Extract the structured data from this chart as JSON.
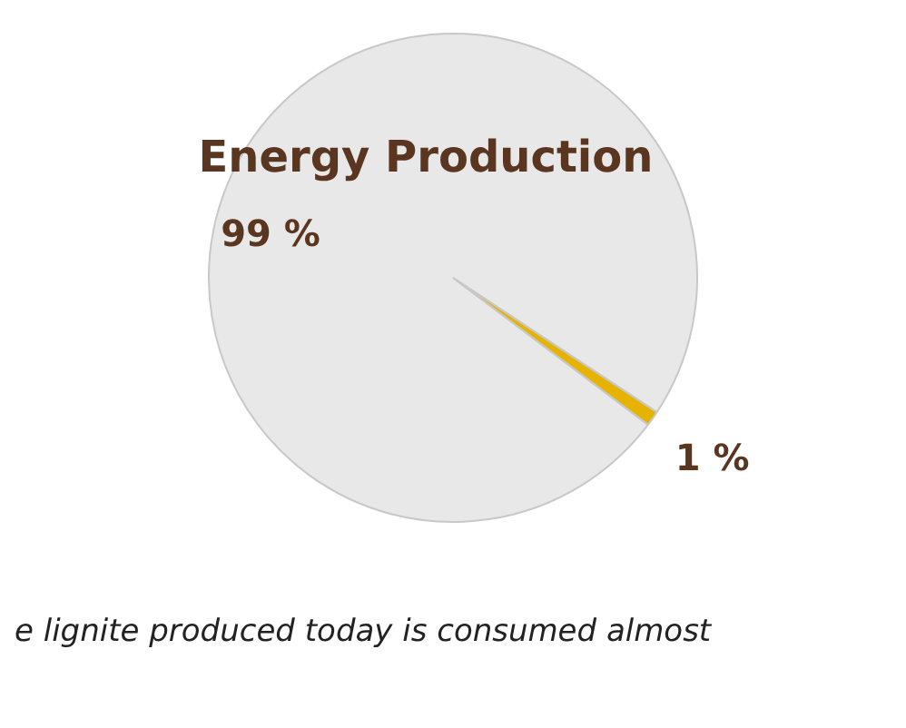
{
  "chart_data": {
    "type": "pie",
    "title": "Energy Production",
    "categories": [
      null,
      null
    ],
    "values": [
      99,
      1
    ],
    "colors": [
      "#e8e8e8",
      "#e6b400"
    ],
    "value_labels": [
      "99 %",
      "1 %"
    ],
    "annotations": [
      "e lignite produced today is consumed almost"
    ]
  }
}
